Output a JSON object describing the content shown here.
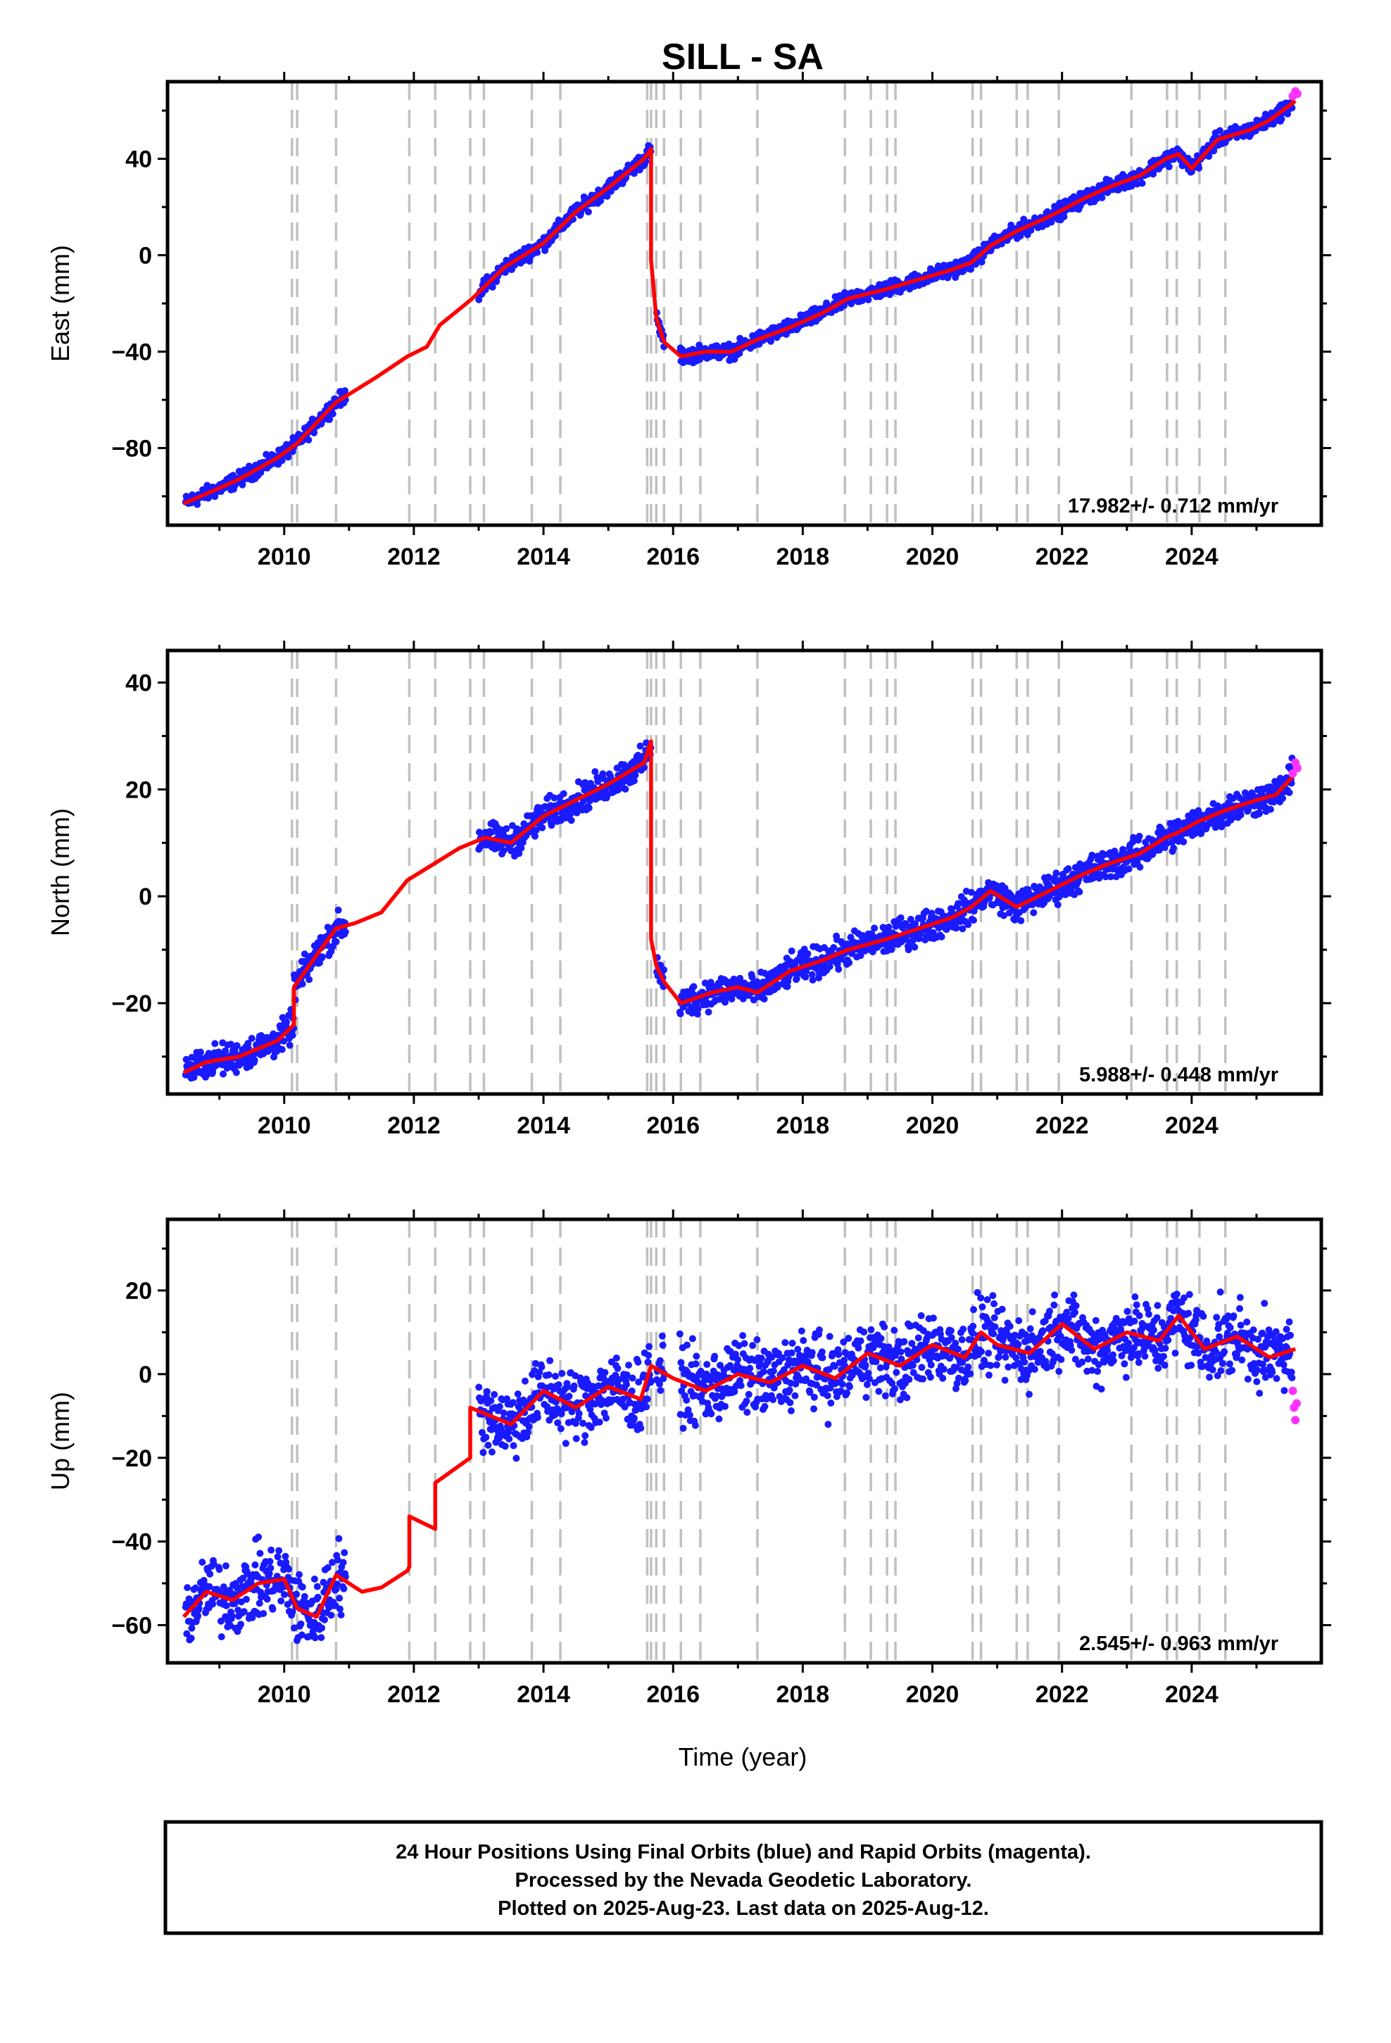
{
  "chart_data": {
    "title": "SILL - SA",
    "type": "scatter",
    "xlabel": "Time (year)",
    "xlim": [
      2008.2,
      2026.0
    ],
    "xticks": [
      2010,
      2012,
      2014,
      2016,
      2018,
      2020,
      2022,
      2024
    ],
    "colors": {
      "final": "#1a1aff",
      "rapid": "#ff33ff",
      "model": "#ff0000",
      "steps": "#c0c0c0"
    },
    "step_epochs": [
      2010.12,
      2010.2,
      2010.8,
      2011.93,
      2012.33,
      2012.87,
      2013.08,
      2013.82,
      2014.26,
      2015.6,
      2015.66,
      2015.74,
      2015.86,
      2016.12,
      2016.42,
      2017.3,
      2018.65,
      2019.05,
      2019.3,
      2019.43,
      2020.62,
      2020.75,
      2021.3,
      2021.47,
      2021.95,
      2023.07,
      2023.62,
      2023.77,
      2024.12,
      2024.52
    ],
    "panels": [
      {
        "ylabel": "East (mm)",
        "ylim": [
          -112,
          72
        ],
        "yticks": [
          -80,
          -40,
          0,
          40
        ],
        "ytick_labels": [
          "−80",
          "−40",
          "0",
          "40"
        ],
        "rate_label": "17.982+/- 0.712 mm/yr",
        "model_line": {
          "x": [
            2008.45,
            2008.8,
            2009.3,
            2009.9,
            2010.2,
            2010.8,
            2011.4,
            2011.9,
            2012.2,
            2012.4,
            2012.9,
            2013.4,
            2014.0,
            2014.5,
            2015.0,
            2015.55,
            2015.66,
            2015.66,
            2015.74,
            2015.86,
            2016.12,
            2016.5,
            2016.9,
            2017.3,
            2017.8,
            2018.3,
            2018.7,
            2019.3,
            2019.8,
            2020.3,
            2020.6,
            2020.9,
            2021.3,
            2021.8,
            2022.3,
            2022.7,
            2023.2,
            2023.6,
            2023.8,
            2024.0,
            2024.4,
            2024.9,
            2025.2,
            2025.6
          ],
          "y": [
            -103,
            -99,
            -93,
            -84,
            -78,
            -61,
            -51,
            -42,
            -38,
            -29,
            -18,
            -5,
            5,
            18,
            28,
            40,
            44,
            -2,
            -26,
            -36,
            -42,
            -40,
            -40,
            -35,
            -30,
            -24,
            -18,
            -14,
            -10,
            -6,
            -3,
            4,
            10,
            16,
            23,
            28,
            33,
            40,
            42,
            36,
            48,
            52,
            56,
            64
          ]
        },
        "rapid": {
          "x": [
            2025.56,
            2025.6,
            2025.63
          ],
          "y": [
            66,
            68,
            67
          ]
        }
      },
      {
        "ylabel": "North (mm)",
        "ylim": [
          -37,
          46
        ],
        "yticks": [
          -20,
          0,
          20,
          40
        ],
        "ytick_labels": [
          "−20",
          "0",
          "20",
          "40"
        ],
        "rate_label": "5.988+/- 0.448 mm/yr",
        "model_line": {
          "x": [
            2008.45,
            2008.8,
            2009.3,
            2009.9,
            2010.15,
            2010.15,
            2010.5,
            2010.8,
            2011.1,
            2011.5,
            2011.9,
            2012.3,
            2012.7,
            2013.1,
            2013.5,
            2014.0,
            2014.5,
            2015.0,
            2015.55,
            2015.66,
            2015.66,
            2015.74,
            2015.86,
            2016.12,
            2016.6,
            2017.0,
            2017.3,
            2017.8,
            2018.3,
            2018.7,
            2019.3,
            2019.8,
            2020.3,
            2020.6,
            2020.9,
            2021.3,
            2021.8,
            2022.3,
            2022.7,
            2023.2,
            2023.6,
            2023.8,
            2024.1,
            2024.5,
            2025.0,
            2025.3,
            2025.6
          ],
          "y": [
            -33,
            -31,
            -30,
            -27,
            -24,
            -17,
            -11,
            -6,
            -5,
            -3,
            3,
            6,
            9,
            11,
            10,
            15,
            18,
            21,
            25,
            29,
            -8,
            -13,
            -16,
            -20,
            -18,
            -17,
            -18,
            -14,
            -12,
            -10,
            -8,
            -6,
            -4,
            -2,
            1,
            -2,
            1,
            4,
            6,
            8,
            11,
            12,
            14,
            16,
            18,
            19,
            23
          ]
        },
        "rapid": {
          "x": [
            2025.56,
            2025.6,
            2025.63
          ],
          "y": [
            23,
            25,
            24
          ]
        }
      },
      {
        "ylabel": "Up (mm)",
        "ylim": [
          -69,
          37
        ],
        "yticks": [
          -60,
          -40,
          -20,
          0,
          20
        ],
        "ytick_labels": [
          "−60",
          "−40",
          "−20",
          "0",
          "20"
        ],
        "rate_label": "2.545+/- 0.963 mm/yr",
        "model_line": {
          "x": [
            2008.45,
            2008.8,
            2009.2,
            2009.6,
            2010.0,
            2010.2,
            2010.5,
            2010.8,
            2011.2,
            2011.5,
            2011.9,
            2011.93,
            2011.93,
            2012.33,
            2012.33,
            2012.87,
            2012.87,
            2013.5,
            2014.0,
            2014.5,
            2015.0,
            2015.5,
            2015.66,
            2016.0,
            2016.5,
            2017.0,
            2017.5,
            2018.0,
            2018.5,
            2019.0,
            2019.5,
            2020.0,
            2020.5,
            2020.75,
            2021.0,
            2021.5,
            2022.0,
            2022.5,
            2023.0,
            2023.5,
            2023.8,
            2024.2,
            2024.7,
            2025.2,
            2025.6
          ],
          "y": [
            -58,
            -52,
            -54,
            -50,
            -49,
            -56,
            -58,
            -48,
            -52,
            -51,
            -47,
            -46,
            -34,
            -37,
            -26,
            -20,
            -8,
            -12,
            -4,
            -8,
            -3,
            -6,
            2,
            -1,
            -4,
            0,
            -2,
            2,
            -1,
            5,
            2,
            7,
            4,
            10,
            7,
            5,
            12,
            6,
            10,
            8,
            14,
            6,
            9,
            4,
            6
          ]
        },
        "rapid": {
          "x": [
            2025.56,
            2025.58,
            2025.6,
            2025.62
          ],
          "y": [
            -4,
            -8,
            -11,
            -7
          ]
        }
      }
    ]
  },
  "footer": {
    "line1": "24 Hour Positions Using Final Orbits (blue) and Rapid Orbits (magenta).",
    "line2": "Processed by the Nevada Geodetic Laboratory.",
    "line3": "Plotted on 2025-Aug-23. Last data on 2025-Aug-12."
  }
}
